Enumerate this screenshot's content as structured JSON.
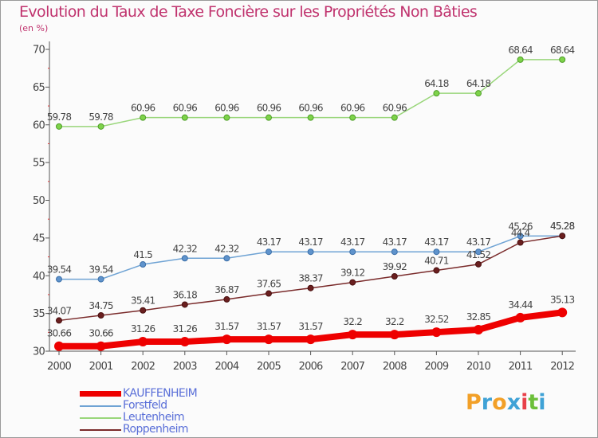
{
  "title": "Evolution du Taux de Taxe Foncière sur les Propriétés Non Bâties",
  "unit_label": "(en %)",
  "logo": {
    "letters": [
      "P",
      "r",
      "o",
      "x",
      "i",
      "t",
      "i"
    ],
    "colors": [
      "#f2a028",
      "#3fa2d6",
      "#f2a028",
      "#3fa2d6",
      "#e8404a",
      "#6cbf3a",
      "#3fa2d6"
    ]
  },
  "chart_data": {
    "type": "line",
    "x": [
      "2000",
      "2001",
      "2002",
      "2003",
      "2004",
      "2005",
      "2006",
      "2007",
      "2008",
      "2009",
      "2010",
      "2011",
      "2012"
    ],
    "ylim": [
      30,
      70
    ],
    "yticks": [
      30,
      35,
      40,
      45,
      50,
      55,
      60,
      65,
      70
    ],
    "grid": false,
    "legend_position": "bottom-left",
    "series": [
      {
        "name": "KAUFFENHEIM",
        "color": "#ee0000",
        "values": [
          30.66,
          30.66,
          31.26,
          31.26,
          31.57,
          31.57,
          31.57,
          32.2,
          32.2,
          32.52,
          32.85,
          34.44,
          35.13
        ],
        "labels": [
          "30.66",
          "30.66",
          "31.26",
          "31.26",
          "31.57",
          "31.57",
          "31.57",
          "32.2",
          "32.2",
          "32.52",
          "32.85",
          "34.44",
          "35.13"
        ]
      },
      {
        "name": "Forstfeld",
        "color": "#6fa3d4",
        "values": [
          39.54,
          39.54,
          41.5,
          42.32,
          42.32,
          43.17,
          43.17,
          43.17,
          43.17,
          43.17,
          43.17,
          45.26,
          45.28
        ],
        "labels": [
          "39.54",
          "39.54",
          "41.5",
          "42.32",
          "42.32",
          "43.17",
          "43.17",
          "43.17",
          "43.17",
          "43.17",
          "43.17",
          "45.26",
          "45.28"
        ]
      },
      {
        "name": "Leutenheim",
        "color": "#99d67a",
        "values": [
          59.78,
          59.78,
          60.96,
          60.96,
          60.96,
          60.96,
          60.96,
          60.96,
          60.96,
          64.18,
          64.18,
          68.64,
          68.64
        ],
        "labels": [
          "59.78",
          "59.78",
          "60.96",
          "60.96",
          "60.96",
          "60.96",
          "60.96",
          "60.96",
          "60.96",
          "64.18",
          "64.18",
          "68.64",
          "68.64"
        ]
      },
      {
        "name": "Roppenheim",
        "color": "#7a2b2b",
        "values": [
          34.07,
          34.75,
          35.41,
          36.18,
          36.87,
          37.65,
          38.37,
          39.12,
          39.92,
          40.71,
          41.52,
          44.4,
          45.28
        ],
        "labels": [
          "34.07",
          "34.75",
          "35.41",
          "36.18",
          "36.87",
          "37.65",
          "38.37",
          "39.12",
          "39.92",
          "40.71",
          "41.52",
          "44.4",
          "45.28"
        ]
      }
    ]
  },
  "legend": [
    {
      "name": "KAUFFENHEIM",
      "color": "#ee0000"
    },
    {
      "name": "Forstfeld",
      "color": "#6fa3d4"
    },
    {
      "name": "Leutenheim",
      "color": "#99d67a"
    },
    {
      "name": "Roppenheim",
      "color": "#7a2b2b"
    }
  ]
}
